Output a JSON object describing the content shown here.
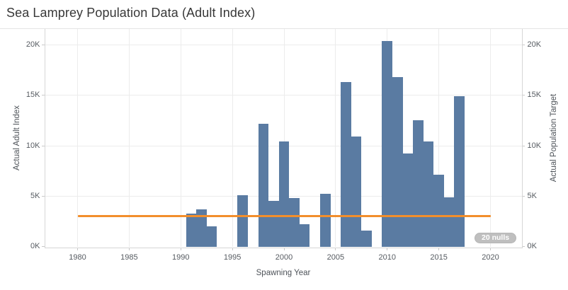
{
  "title": "Sea Lamprey Population Data (Adult Index)",
  "badge": {
    "label": "20 nulls"
  },
  "colors": {
    "bar": "#5a7ba2",
    "target_line": "#f28e2b",
    "badge_bg": "#bfbfbf",
    "badge_text": "#ffffff"
  },
  "chart_data": {
    "type": "bar",
    "title": "Sea Lamprey Population Data (Adult Index)",
    "xlabel": "Spawning Year",
    "ylabel_left": "Actual Adult Index",
    "ylabel_right": "Actual Population Target",
    "x_ticks": [
      1980,
      1985,
      1990,
      1995,
      2000,
      2005,
      2010,
      2015,
      2020
    ],
    "y_ticks": {
      "values": [
        0,
        5000,
        10000,
        15000,
        20000
      ],
      "labels": [
        "0K",
        "5K",
        "10K",
        "15K",
        "20K"
      ]
    },
    "xlim": [
      1977,
      2023
    ],
    "ylim": [
      0,
      21600
    ],
    "grid": true,
    "series": [
      {
        "name": "Actual Adult Index",
        "type": "bar",
        "points": [
          {
            "year": 1991,
            "value": 3300
          },
          {
            "year": 1992,
            "value": 3700
          },
          {
            "year": 1993,
            "value": 2000
          },
          {
            "year": 1996,
            "value": 5100
          },
          {
            "year": 1998,
            "value": 12200
          },
          {
            "year": 1999,
            "value": 4500
          },
          {
            "year": 2000,
            "value": 10400
          },
          {
            "year": 2001,
            "value": 4800
          },
          {
            "year": 2002,
            "value": 2200
          },
          {
            "year": 2004,
            "value": 5200
          },
          {
            "year": 2006,
            "value": 16300
          },
          {
            "year": 2007,
            "value": 10900
          },
          {
            "year": 2008,
            "value": 1600
          },
          {
            "year": 2010,
            "value": 20400
          },
          {
            "year": 2011,
            "value": 16800
          },
          {
            "year": 2012,
            "value": 9200
          },
          {
            "year": 2013,
            "value": 12500
          },
          {
            "year": 2014,
            "value": 10400
          },
          {
            "year": 2015,
            "value": 7100
          },
          {
            "year": 2016,
            "value": 4900
          },
          {
            "year": 2017,
            "value": 14900
          }
        ]
      },
      {
        "name": "Actual Population Target",
        "type": "line",
        "value": 3000,
        "x_start": 1980,
        "x_end": 2020
      }
    ],
    "null_years_note": "20 nulls",
    "legend_position": "none"
  }
}
